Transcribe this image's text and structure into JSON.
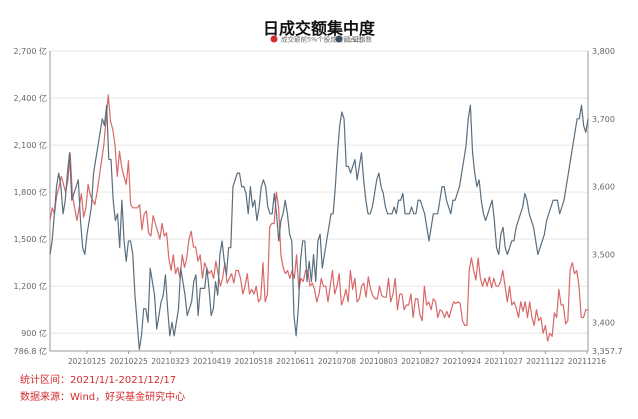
{
  "footer": {
    "period": "统计区间：2021/1/1-2021/12/17",
    "source": "数据来源：Wind，好买基金研究中心"
  },
  "colors": {
    "series_red": "#d86868",
    "series_blue": "#5a6e7e",
    "legend_red_dot": "#d42c2c",
    "legend_blue_dot": "#3c4e5e",
    "grid": "#e6e6e6",
    "axis": "#999999",
    "footer_text": "#d42c2c"
  },
  "chart_data": {
    "type": "line",
    "title": "日成交额集中度",
    "x_ticks": [
      "20210125",
      "20210225",
      "20210323",
      "20210419",
      "20210518",
      "20210611",
      "20210708",
      "20210803",
      "20210827",
      "20210924",
      "20211027",
      "20211122",
      "20211216"
    ],
    "y_left": {
      "min": 786.8,
      "max": 2700,
      "ticks": [
        "786.8 亿",
        "900 亿",
        "1,200 亿",
        "1,500 亿",
        "1,800 亿",
        "2,100 亿",
        "2,400 亿",
        "2,700 亿"
      ],
      "tick_values": [
        786.8,
        900,
        1200,
        1500,
        1800,
        2100,
        2400,
        2700
      ]
    },
    "y_right": {
      "min": 3357.7,
      "max": 3800,
      "ticks": [
        "3,357.7",
        "3,400",
        "3,500",
        "3,600",
        "3,700",
        "3,800"
      ],
      "tick_values": [
        3357.7,
        3400,
        3500,
        3600,
        3700,
        3800
      ]
    },
    "grid": true,
    "legend_position": "top-center",
    "series": [
      {
        "name": "成交额前5%个股成交额占比",
        "axis": "left",
        "color": "#d86868",
        "values": [
          1620,
          1700,
          1660,
          1780,
          1830,
          1900,
          1850,
          1800,
          1880,
          2050,
          1780,
          1700,
          1620,
          1700,
          1790,
          1640,
          1700,
          1850,
          1780,
          1750,
          1720,
          1800,
          1900,
          2000,
          2100,
          2260,
          2420,
          2250,
          2200,
          2100,
          1900,
          2060,
          1960,
          1900,
          1850,
          2000,
          1720,
          1700,
          1700,
          1700,
          1720,
          1560,
          1660,
          1680,
          1540,
          1520,
          1650,
          1600,
          1550,
          1500,
          1600,
          1520,
          1540,
          1380,
          1300,
          1400,
          1280,
          1320,
          1250,
          1400,
          1320,
          1380,
          1500,
          1550,
          1450,
          1450,
          1360,
          1400,
          1250,
          1350,
          1310,
          1280,
          1300,
          1250,
          1360,
          1280,
          1200,
          1250,
          1350,
          1220,
          1250,
          1280,
          1220,
          1300,
          1300,
          1250,
          1150,
          1200,
          1280,
          1150,
          1180,
          1150,
          1200,
          1100,
          1120,
          1350,
          1100,
          1150,
          1580,
          1600,
          1600,
          1800,
          1700,
          1400,
          1320,
          1280,
          1300,
          1250,
          1300,
          1250,
          1400,
          1180,
          1250,
          1230,
          1300,
          1300,
          1200,
          1220,
          1180,
          1100,
          1150,
          1250,
          1200,
          1200,
          1100,
          1200,
          1300,
          1150,
          1200,
          1280,
          1080,
          1120,
          1180,
          1100,
          1300,
          1180,
          1250,
          1100,
          1120,
          1200,
          1220,
          1130,
          1260,
          1180,
          1140,
          1120,
          1120,
          1200,
          1140,
          1130,
          1130,
          1250,
          1100,
          1150,
          1250,
          1050,
          1150,
          1150,
          1050,
          1080,
          1080,
          1150,
          1000,
          1120,
          1120,
          1020,
          980,
          1200,
          1080,
          1100,
          1050,
          1120,
          1100,
          1000,
          1050,
          1040,
          1000,
          1040,
          1000,
          1050,
          1100,
          1090,
          1100,
          1090,
          980,
          950,
          950,
          1300,
          1380,
          1300,
          1240,
          1380,
          1250,
          1200,
          1250,
          1200,
          1260,
          1190,
          1250,
          1200,
          1200,
          1230,
          1300,
          1200,
          1100,
          1200,
          1080,
          1100,
          1060,
          1000,
          1100,
          1040,
          1100,
          1000,
          1100,
          1000,
          950,
          1050,
          980,
          1000,
          900,
          950,
          850,
          900,
          880,
          1030,
          1000,
          1180,
          1080,
          1080,
          960,
          980,
          1300,
          1350,
          1280,
          1300,
          1200,
          1000,
          1000,
          1050,
          1050
        ]
      },
      {
        "name": "上证指数",
        "axis": "right",
        "color": "#5a6e7e",
        "values": [
          3500,
          3520,
          3560,
          3600,
          3620,
          3600,
          3560,
          3580,
          3620,
          3650,
          3580,
          3590,
          3600,
          3610,
          3550,
          3510,
          3500,
          3530,
          3550,
          3570,
          3620,
          3640,
          3660,
          3680,
          3700,
          3690,
          3720,
          3640,
          3640,
          3580,
          3550,
          3560,
          3510,
          3580,
          3520,
          3490,
          3520,
          3520,
          3500,
          3440,
          3400,
          3360,
          3380,
          3420,
          3420,
          3400,
          3480,
          3460,
          3440,
          3390,
          3410,
          3430,
          3440,
          3470,
          3420,
          3380,
          3400,
          3380,
          3400,
          3420,
          3480,
          3460,
          3440,
          3410,
          3420,
          3430,
          3460,
          3470,
          3410,
          3450,
          3450,
          3450,
          3480,
          3450,
          3410,
          3420,
          3460,
          3440,
          3500,
          3520,
          3490,
          3470,
          3510,
          3510,
          3600,
          3610,
          3620,
          3620,
          3600,
          3600,
          3590,
          3560,
          3600,
          3570,
          3580,
          3550,
          3570,
          3600,
          3610,
          3600,
          3570,
          3560,
          3560,
          3590,
          3560,
          3520,
          3550,
          3560,
          3580,
          3560,
          3530,
          3520,
          3410,
          3380,
          3420,
          3490,
          3520,
          3520,
          3460,
          3490,
          3460,
          3500,
          3460,
          3520,
          3530,
          3480,
          3500,
          3520,
          3540,
          3560,
          3560,
          3600,
          3650,
          3690,
          3710,
          3700,
          3630,
          3630,
          3620,
          3630,
          3640,
          3610,
          3630,
          3650,
          3610,
          3580,
          3560,
          3560,
          3570,
          3590,
          3610,
          3620,
          3600,
          3590,
          3570,
          3560,
          3560,
          3560,
          3570,
          3560,
          3580,
          3580,
          3590,
          3560,
          3560,
          3560,
          3570,
          3560,
          3560,
          3580,
          3580,
          3570,
          3560,
          3540,
          3520,
          3540,
          3560,
          3560,
          3560,
          3580,
          3600,
          3600,
          3580,
          3570,
          3560,
          3580,
          3580,
          3590,
          3600,
          3620,
          3640,
          3660,
          3700,
          3720,
          3650,
          3620,
          3600,
          3610,
          3580,
          3560,
          3550,
          3560,
          3570,
          3580,
          3550,
          3510,
          3500,
          3530,
          3540,
          3510,
          3500,
          3510,
          3520,
          3520,
          3540,
          3550,
          3560,
          3570,
          3590,
          3580,
          3560,
          3550,
          3540,
          3520,
          3500,
          3510,
          3520,
          3530,
          3550,
          3560,
          3570,
          3580,
          3580,
          3580,
          3560,
          3570,
          3580,
          3600,
          3620,
          3640,
          3660,
          3680,
          3700,
          3700,
          3720,
          3690,
          3680,
          3700
        ]
      }
    ]
  }
}
